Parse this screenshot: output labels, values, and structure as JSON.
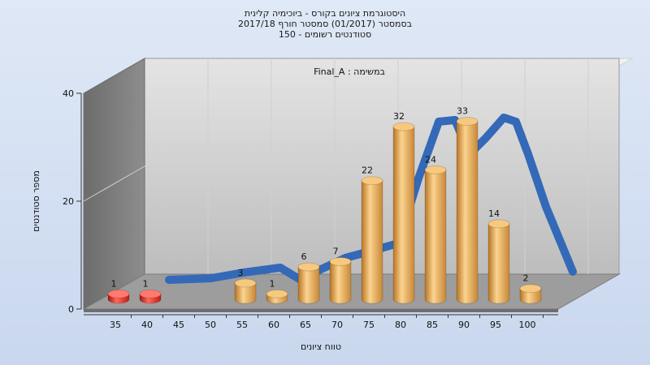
{
  "chart_data": {
    "type": "bar",
    "title_lines": [
      "היסטוגרמת ציונים בקורס - ביוכימיה קלינית",
      "בסמסטר  (01/2017)  סמסטר חורף 2017/18",
      "סטודנטים רשומים - 150"
    ],
    "annotation": "במשימה : Final_A",
    "xlabel": "טווח ציונים",
    "ylabel": "מספר סטודנטים",
    "categories": [
      "35",
      "40",
      "45",
      "50",
      "55",
      "60",
      "65",
      "70",
      "75",
      "80",
      "85",
      "90",
      "95",
      "100"
    ],
    "values": [
      1,
      1,
      0,
      0,
      3,
      1,
      6,
      7,
      22,
      32,
      24,
      33,
      14,
      2
    ],
    "bar_colors": [
      "#d92b20",
      "#d92b20",
      "#e0a347",
      "#e0a347",
      "#e0a347",
      "#e0a347",
      "#e0a347",
      "#e0a347",
      "#e0a347",
      "#e0a347",
      "#e0a347",
      "#e0a347",
      "#e0a347",
      "#e0a347"
    ],
    "curve_color": "#3469b8",
    "ylim": [
      0,
      40
    ],
    "yticks": [
      0,
      20,
      40
    ],
    "grid": true
  }
}
